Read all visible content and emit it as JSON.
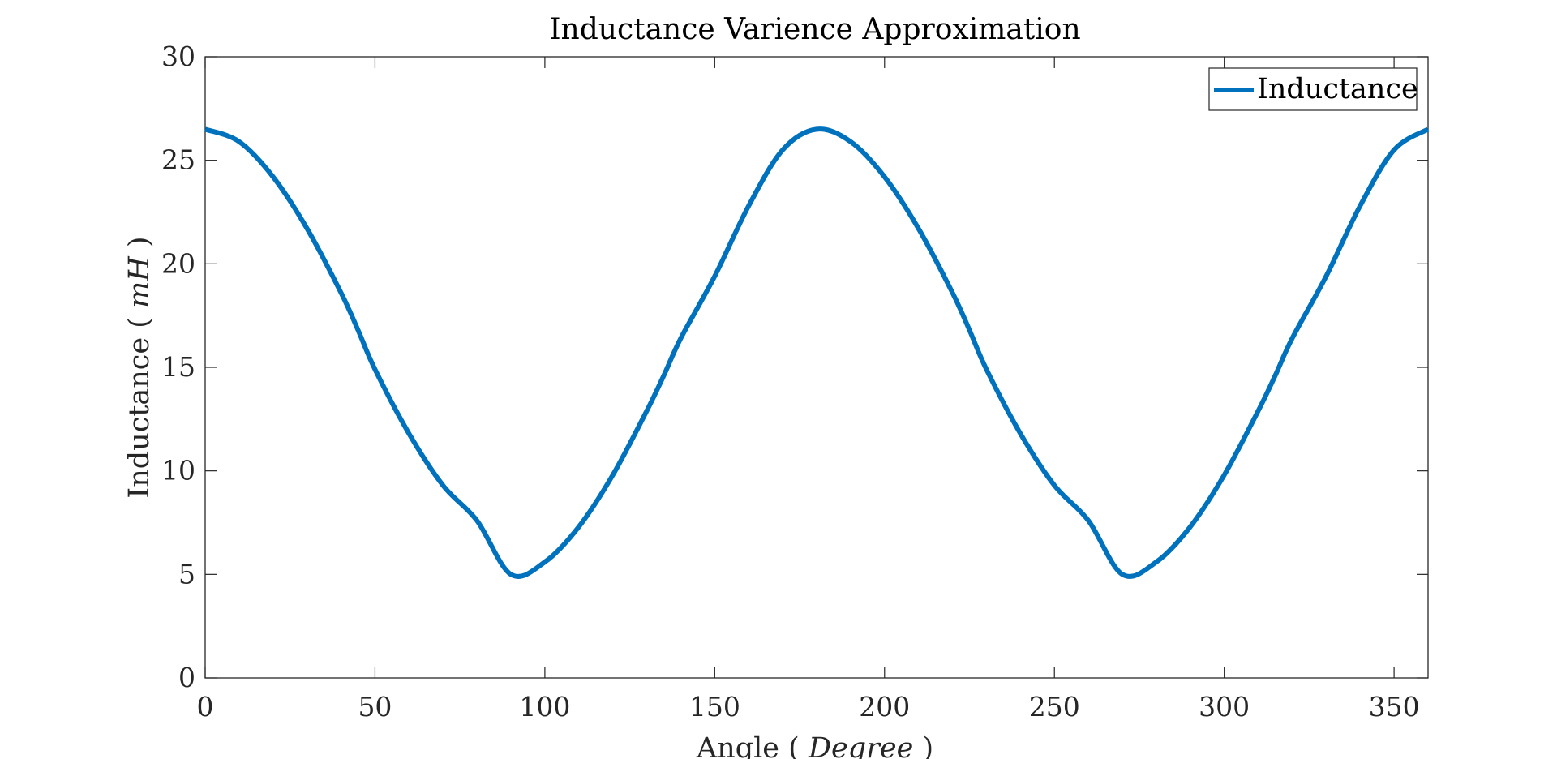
{
  "chart_data": {
    "type": "line",
    "title": "Inductance Varience Approximation",
    "xlabel": "Angle",
    "xlabel_unit": "Degree",
    "ylabel": "Inductance",
    "ylabel_unit": "mH",
    "xlim": [
      0,
      360
    ],
    "ylim": [
      0,
      30
    ],
    "xticks": [
      0,
      50,
      100,
      150,
      200,
      250,
      300,
      350
    ],
    "yticks": [
      0,
      5,
      10,
      15,
      20,
      25,
      30
    ],
    "grid": false,
    "legend_position": "top-right",
    "series": [
      {
        "name": "Inductance",
        "color": "#0072BD",
        "x": [
          0,
          10,
          20,
          30,
          40,
          45,
          50,
          60,
          70,
          80,
          90,
          100,
          110,
          120,
          130,
          135,
          140,
          150,
          160,
          170,
          180,
          190,
          200,
          210,
          220,
          225,
          230,
          240,
          250,
          260,
          270,
          280,
          290,
          300,
          310,
          315,
          320,
          330,
          340,
          350,
          360
        ],
        "y": [
          26.5,
          25.9,
          24.2,
          21.7,
          18.6,
          16.8,
          14.9,
          11.8,
          9.3,
          7.6,
          5.0,
          5.6,
          7.3,
          9.8,
          12.9,
          14.6,
          16.4,
          19.4,
          22.8,
          25.5,
          26.5,
          25.9,
          24.2,
          21.7,
          18.6,
          16.8,
          14.9,
          11.8,
          9.3,
          7.6,
          5.0,
          5.6,
          7.3,
          9.8,
          12.9,
          14.6,
          16.4,
          19.4,
          22.8,
          25.5,
          26.5
        ]
      }
    ]
  }
}
